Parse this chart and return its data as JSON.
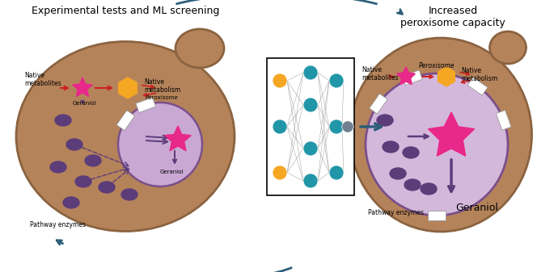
{
  "bg_color": "#ffffff",
  "cell_color": "#b5835a",
  "cell_outline": "#8B6340",
  "peroxisome_color_left": "#c9a8d4",
  "peroxisome_outline": "#7B4F8A",
  "peroxisome_color_right": "#d4b8dc",
  "enzyme_color": "#5c3d7a",
  "star_color": "#e8288a",
  "hexagon_color": "#f5a623",
  "arrow_red": "#cc2222",
  "arrow_purple": "#5c3d7a",
  "arrow_dark": "#2d5f7a",
  "title_left": "Experimental tests and ML screening",
  "title_right": "Increased\nperoxisome capacity",
  "label_native_met_l": "Native\nmetabolites",
  "label_native_meta_l": "Native\nmetabolism",
  "label_geraniol": "Geraniol",
  "label_peroxisome": "Peroxisome",
  "label_pathway": "Pathway enzymes",
  "nn_inp_colors": [
    "#f5a623",
    "#2196a8",
    "#f5a623"
  ],
  "nn_hid_colors": [
    "#2196a8",
    "#2196a8",
    "#2196a8",
    "#2196a8"
  ],
  "nn_out_colors": [
    "#2196a8",
    "#2196a8",
    "#2196a8"
  ],
  "nn_fin_color": "#708090"
}
